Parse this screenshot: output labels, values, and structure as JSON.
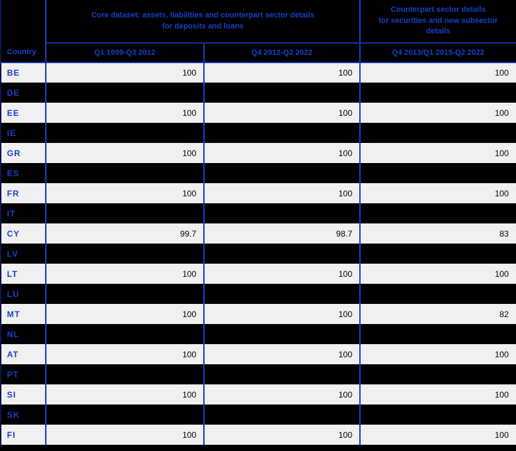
{
  "colors": {
    "header_bg": "#000000",
    "row_light_bg": "#F0F0F0",
    "row_dark_bg": "#000000",
    "accent_blue": "#1540C6",
    "grid_blue": "#1A3BBE",
    "grid_navy": "#13309F",
    "outer_left": "#0A1550",
    "outer_right": "#000000",
    "value_text": "#000000"
  },
  "table": {
    "country_header": "Country",
    "group_headers": [
      "Core dataset: assets, liabilities and counterpart sector details\nfor deposits and loans",
      "Counterpart sector details\nfor securities and new subsector\ndetails"
    ],
    "period_headers": [
      "Q1 1999-Q3 2012",
      "Q4 2012-Q2 2022",
      "Q4 2013/Q1 2015-Q2 2022"
    ],
    "rows": [
      {
        "country": "BE",
        "dark": false,
        "values": [
          "100",
          "100",
          "100"
        ]
      },
      {
        "country": "DE",
        "dark": true,
        "values": [
          "",
          "",
          ""
        ]
      },
      {
        "country": "EE",
        "dark": false,
        "values": [
          "100",
          "100",
          "100"
        ]
      },
      {
        "country": "IE",
        "dark": true,
        "values": [
          "",
          "",
          ""
        ]
      },
      {
        "country": "GR",
        "dark": false,
        "values": [
          "100",
          "100",
          "100"
        ]
      },
      {
        "country": "ES",
        "dark": true,
        "values": [
          "",
          "",
          ""
        ]
      },
      {
        "country": "FR",
        "dark": false,
        "values": [
          "100",
          "100",
          "100"
        ]
      },
      {
        "country": "IT",
        "dark": true,
        "values": [
          "",
          "",
          ""
        ]
      },
      {
        "country": "CY",
        "dark": false,
        "values": [
          "99.7",
          "98.7",
          "83"
        ]
      },
      {
        "country": "LV",
        "dark": true,
        "values": [
          "",
          "",
          ""
        ]
      },
      {
        "country": "LT",
        "dark": false,
        "values": [
          "100",
          "100",
          "100"
        ]
      },
      {
        "country": "LU",
        "dark": true,
        "values": [
          "",
          "",
          ""
        ]
      },
      {
        "country": "MT",
        "dark": false,
        "values": [
          "100",
          "100",
          "82"
        ]
      },
      {
        "country": "NL",
        "dark": true,
        "values": [
          "",
          "",
          ""
        ]
      },
      {
        "country": "AT",
        "dark": false,
        "values": [
          "100",
          "100",
          "100"
        ]
      },
      {
        "country": "PT",
        "dark": true,
        "values": [
          "",
          "",
          ""
        ]
      },
      {
        "country": "SI",
        "dark": false,
        "values": [
          "100",
          "100",
          "100"
        ]
      },
      {
        "country": "SK",
        "dark": true,
        "values": [
          "",
          "",
          ""
        ]
      },
      {
        "country": "FI",
        "dark": false,
        "values": [
          "100",
          "100",
          "100"
        ]
      }
    ]
  }
}
